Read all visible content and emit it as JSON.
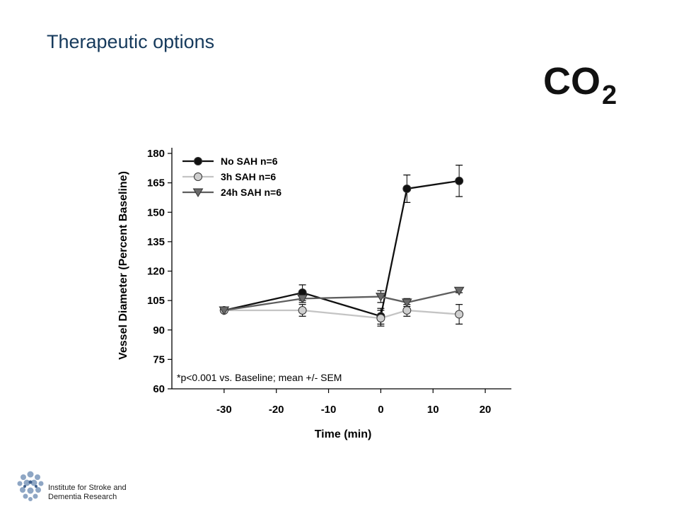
{
  "slide": {
    "title": "Therapeutic options",
    "formula_main": "CO",
    "formula_sub": "2",
    "organization_line1": "Institute for Stroke and",
    "organization_line2": "Dementia Research"
  },
  "chart_data": {
    "type": "line",
    "xlabel": "Time (min)",
    "ylabel": "Vessel Diameter (Percent Baseline)",
    "xlim": [
      -40,
      25
    ],
    "ylim": [
      60,
      180
    ],
    "xticks": [
      -30,
      -20,
      -10,
      0,
      10,
      20
    ],
    "yticks": [
      60,
      75,
      90,
      105,
      120,
      135,
      150,
      165,
      180
    ],
    "grid": false,
    "legend_position": "top-left",
    "annotation": "*p<0.001 vs. Baseline; mean +/- SEM",
    "series": [
      {
        "name": "No SAH n=6",
        "color": "#111111",
        "marker": "circle",
        "fill": "#111111",
        "x": [
          -30,
          -15,
          0,
          5,
          15
        ],
        "y": [
          100,
          109,
          97,
          162,
          166
        ],
        "err": [
          0,
          4,
          4,
          7,
          8
        ]
      },
      {
        "name": "3h SAH n=6",
        "color": "#c4c4c4",
        "marker": "circle",
        "fill": "#cfcfcf",
        "x": [
          -30,
          -15,
          0,
          5,
          15
        ],
        "y": [
          100,
          100,
          96,
          100,
          98
        ],
        "err": [
          0,
          3,
          4,
          3,
          5
        ]
      },
      {
        "name": "24h SAH n=6",
        "color": "#5e5e5e",
        "marker": "triangle-down",
        "fill": "#6a6a6a",
        "x": [
          -30,
          -15,
          0,
          5,
          15
        ],
        "y": [
          100,
          106,
          107,
          104,
          110
        ],
        "err": [
          0,
          2,
          3,
          2,
          1
        ]
      }
    ]
  }
}
